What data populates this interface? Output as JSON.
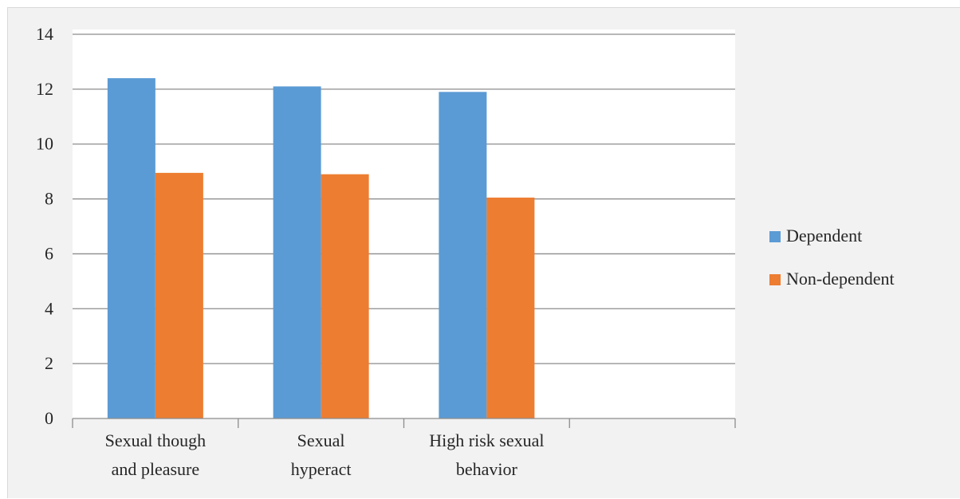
{
  "chart_data": {
    "type": "bar",
    "categories": [
      [
        "Sexual though",
        "and pleasure"
      ],
      [
        "Sexual",
        "hyperact"
      ],
      [
        "High risk sexual",
        "behavior"
      ],
      [
        ""
      ]
    ],
    "series": [
      {
        "name": "Dependent",
        "values": [
          12.4,
          12.1,
          11.9,
          null
        ],
        "color": "#5b9bd5"
      },
      {
        "name": "Non-dependent",
        "values": [
          8.95,
          8.9,
          8.05,
          null
        ],
        "color": "#ed7d31"
      }
    ],
    "ylim": [
      0,
      14
    ],
    "yticks": [
      0,
      2,
      4,
      6,
      8,
      10,
      12,
      14
    ],
    "grid": true,
    "legend_position": "right",
    "title": "",
    "xlabel": "",
    "ylabel": ""
  }
}
